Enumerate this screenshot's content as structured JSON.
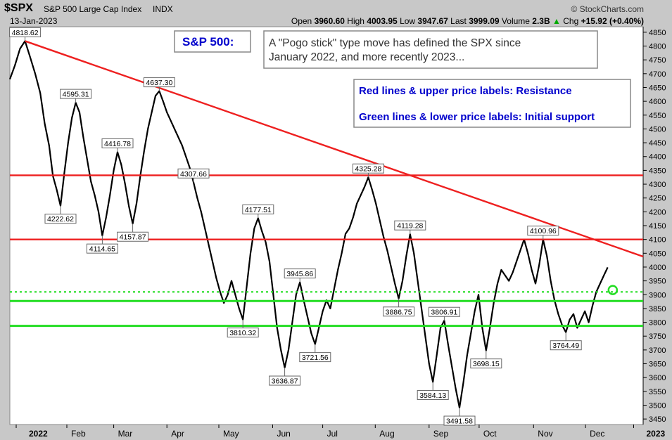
{
  "header": {
    "symbol": "$SPX",
    "name": "S&P 500 Large Cap Index",
    "exchange": "INDX",
    "date": "13-Jan-2023",
    "brand": "© StockCharts.com",
    "open_label": "Open",
    "open": "3960.60",
    "high_label": "High",
    "high": "4003.95",
    "low_label": "Low",
    "low": "3947.67",
    "last_label": "Last",
    "last": "3999.09",
    "volume_label": "Volume",
    "volume": "2.3B",
    "chg_label": "Chg",
    "chg": "+15.92 (+0.40%)",
    "chg_arrow": "▲"
  },
  "annotations": {
    "title_box": "S&P 500:",
    "note_line1": "A \"Pogo stick\" type move has defined the SPX since",
    "note_line2": "January 2022, and more recently 2023...",
    "legend_red": "Red lines & upper price labels: Resistance",
    "legend_green": "Green lines & lower price labels: Initial support"
  },
  "colors": {
    "background": "#c8c8c8",
    "plot": "#ffffff",
    "resistance": "#ee2020",
    "support": "#22dd22",
    "price": "#000000",
    "annotation_blue": "#0000cc"
  },
  "chart_data": {
    "type": "line",
    "ylim": [
      3430,
      4870
    ],
    "yticks": [
      3450,
      3500,
      3550,
      3600,
      3650,
      3700,
      3750,
      3800,
      3850,
      3900,
      3950,
      4000,
      4050,
      4100,
      4150,
      4200,
      4250,
      4300,
      4350,
      4400,
      4450,
      4500,
      4550,
      4600,
      4650,
      4700,
      4750,
      4800,
      4850
    ],
    "x_domain": [
      0,
      1
    ],
    "xticks": [
      {
        "x": 0.01,
        "label": "2022",
        "bold": true
      },
      {
        "x": 0.09,
        "label": "Feb"
      },
      {
        "x": 0.164,
        "label": "Mar"
      },
      {
        "x": 0.248,
        "label": "Apr"
      },
      {
        "x": 0.33,
        "label": "May"
      },
      {
        "x": 0.415,
        "label": "Jun"
      },
      {
        "x": 0.494,
        "label": "Jul"
      },
      {
        "x": 0.577,
        "label": "Aug"
      },
      {
        "x": 0.662,
        "label": "Sep"
      },
      {
        "x": 0.741,
        "label": "Oct"
      },
      {
        "x": 0.827,
        "label": "Nov"
      },
      {
        "x": 0.909,
        "label": "Dec"
      },
      {
        "x": 0.985,
        "label": "2023",
        "bold": true
      }
    ],
    "series": [
      {
        "points": [
          [
            0.0,
            4680
          ],
          [
            0.008,
            4730
          ],
          [
            0.016,
            4790
          ],
          [
            0.024,
            4818
          ],
          [
            0.032,
            4760
          ],
          [
            0.04,
            4700
          ],
          [
            0.048,
            4630
          ],
          [
            0.055,
            4520
          ],
          [
            0.062,
            4440
          ],
          [
            0.068,
            4330
          ],
          [
            0.074,
            4280
          ],
          [
            0.08,
            4222
          ],
          [
            0.086,
            4340
          ],
          [
            0.092,
            4450
          ],
          [
            0.098,
            4540
          ],
          [
            0.104,
            4595
          ],
          [
            0.11,
            4560
          ],
          [
            0.116,
            4470
          ],
          [
            0.122,
            4390
          ],
          [
            0.128,
            4310
          ],
          [
            0.134,
            4260
          ],
          [
            0.14,
            4200
          ],
          [
            0.146,
            4114
          ],
          [
            0.152,
            4180
          ],
          [
            0.158,
            4260
          ],
          [
            0.164,
            4350
          ],
          [
            0.17,
            4416
          ],
          [
            0.176,
            4370
          ],
          [
            0.182,
            4300
          ],
          [
            0.188,
            4220
          ],
          [
            0.194,
            4157
          ],
          [
            0.2,
            4230
          ],
          [
            0.206,
            4330
          ],
          [
            0.212,
            4420
          ],
          [
            0.218,
            4500
          ],
          [
            0.224,
            4560
          ],
          [
            0.23,
            4620
          ],
          [
            0.236,
            4637
          ],
          [
            0.242,
            4600
          ],
          [
            0.248,
            4560
          ],
          [
            0.254,
            4530
          ],
          [
            0.26,
            4500
          ],
          [
            0.266,
            4470
          ],
          [
            0.272,
            4440
          ],
          [
            0.278,
            4400
          ],
          [
            0.284,
            4360
          ],
          [
            0.29,
            4307
          ],
          [
            0.296,
            4250
          ],
          [
            0.302,
            4200
          ],
          [
            0.308,
            4140
          ],
          [
            0.314,
            4080
          ],
          [
            0.32,
            4020
          ],
          [
            0.326,
            3960
          ],
          [
            0.332,
            3910
          ],
          [
            0.338,
            3870
          ],
          [
            0.344,
            3900
          ],
          [
            0.35,
            3950
          ],
          [
            0.356,
            3900
          ],
          [
            0.362,
            3850
          ],
          [
            0.368,
            3810
          ],
          [
            0.374,
            3930
          ],
          [
            0.38,
            4050
          ],
          [
            0.386,
            4140
          ],
          [
            0.392,
            4177
          ],
          [
            0.398,
            4130
          ],
          [
            0.404,
            4090
          ],
          [
            0.41,
            4020
          ],
          [
            0.416,
            3900
          ],
          [
            0.422,
            3780
          ],
          [
            0.428,
            3700
          ],
          [
            0.434,
            3636
          ],
          [
            0.44,
            3700
          ],
          [
            0.446,
            3800
          ],
          [
            0.452,
            3900
          ],
          [
            0.458,
            3945
          ],
          [
            0.464,
            3880
          ],
          [
            0.47,
            3820
          ],
          [
            0.476,
            3760
          ],
          [
            0.482,
            3721
          ],
          [
            0.488,
            3780
          ],
          [
            0.494,
            3840
          ],
          [
            0.5,
            3880
          ],
          [
            0.506,
            3850
          ],
          [
            0.512,
            3920
          ],
          [
            0.518,
            3990
          ],
          [
            0.524,
            4050
          ],
          [
            0.53,
            4120
          ],
          [
            0.536,
            4140
          ],
          [
            0.542,
            4180
          ],
          [
            0.548,
            4230
          ],
          [
            0.554,
            4260
          ],
          [
            0.56,
            4290
          ],
          [
            0.566,
            4325
          ],
          [
            0.572,
            4280
          ],
          [
            0.578,
            4230
          ],
          [
            0.584,
            4170
          ],
          [
            0.59,
            4110
          ],
          [
            0.596,
            4060
          ],
          [
            0.602,
            4000
          ],
          [
            0.608,
            3940
          ],
          [
            0.614,
            3886
          ],
          [
            0.62,
            3950
          ],
          [
            0.626,
            4040
          ],
          [
            0.632,
            4119
          ],
          [
            0.638,
            4050
          ],
          [
            0.644,
            3950
          ],
          [
            0.65,
            3850
          ],
          [
            0.656,
            3750
          ],
          [
            0.662,
            3650
          ],
          [
            0.668,
            3584
          ],
          [
            0.674,
            3680
          ],
          [
            0.68,
            3780
          ],
          [
            0.686,
            3806
          ],
          [
            0.692,
            3720
          ],
          [
            0.698,
            3640
          ],
          [
            0.704,
            3560
          ],
          [
            0.71,
            3491
          ],
          [
            0.716,
            3580
          ],
          [
            0.722,
            3680
          ],
          [
            0.728,
            3760
          ],
          [
            0.734,
            3840
          ],
          [
            0.74,
            3900
          ],
          [
            0.746,
            3780
          ],
          [
            0.752,
            3698
          ],
          [
            0.758,
            3780
          ],
          [
            0.764,
            3870
          ],
          [
            0.77,
            3940
          ],
          [
            0.776,
            3990
          ],
          [
            0.782,
            3970
          ],
          [
            0.788,
            3950
          ],
          [
            0.794,
            3980
          ],
          [
            0.8,
            4020
          ],
          [
            0.806,
            4060
          ],
          [
            0.812,
            4100
          ],
          [
            0.818,
            4050
          ],
          [
            0.824,
            3990
          ],
          [
            0.83,
            3940
          ],
          [
            0.836,
            4010
          ],
          [
            0.842,
            4100
          ],
          [
            0.848,
            4040
          ],
          [
            0.854,
            3950
          ],
          [
            0.86,
            3880
          ],
          [
            0.866,
            3830
          ],
          [
            0.872,
            3790
          ],
          [
            0.878,
            3764
          ],
          [
            0.884,
            3810
          ],
          [
            0.89,
            3830
          ],
          [
            0.896,
            3780
          ],
          [
            0.902,
            3810
          ],
          [
            0.908,
            3840
          ],
          [
            0.914,
            3800
          ],
          [
            0.92,
            3860
          ],
          [
            0.926,
            3910
          ],
          [
            0.932,
            3940
          ],
          [
            0.938,
            3970
          ],
          [
            0.944,
            3999
          ]
        ],
        "color": "#000000"
      }
    ],
    "resistance_lines": [
      {
        "y1": 4818,
        "y2": 4038,
        "x1": 0.024,
        "x2": 1.0
      },
      {
        "y": 4332
      },
      {
        "y": 4100
      }
    ],
    "support_lines": [
      {
        "y": 3910,
        "dashed": true
      },
      {
        "y": 3877
      },
      {
        "y": 3787
      }
    ],
    "labels": [
      {
        "x": 0.024,
        "y": 4818,
        "text": "4818.62",
        "pos": "above"
      },
      {
        "x": 0.104,
        "y": 4595,
        "text": "4595.31",
        "pos": "above"
      },
      {
        "x": 0.236,
        "y": 4637,
        "text": "4637.30",
        "pos": "above"
      },
      {
        "x": 0.17,
        "y": 4416,
        "text": "4416.78",
        "pos": "above"
      },
      {
        "x": 0.29,
        "y": 4307,
        "text": "4307.66",
        "pos": "above"
      },
      {
        "x": 0.392,
        "y": 4177,
        "text": "4177.51",
        "pos": "above"
      },
      {
        "x": 0.458,
        "y": 3945,
        "text": "3945.86",
        "pos": "above"
      },
      {
        "x": 0.566,
        "y": 4325,
        "text": "4325.28",
        "pos": "above"
      },
      {
        "x": 0.632,
        "y": 4119,
        "text": "4119.28",
        "pos": "above"
      },
      {
        "x": 0.686,
        "y": 3806,
        "text": "3806.91",
        "pos": "above"
      },
      {
        "x": 0.842,
        "y": 4100,
        "text": "4100.96",
        "pos": "above"
      },
      {
        "x": 0.08,
        "y": 4222,
        "text": "4222.62",
        "pos": "below"
      },
      {
        "x": 0.146,
        "y": 4114,
        "text": "4114.65",
        "pos": "below"
      },
      {
        "x": 0.194,
        "y": 4157,
        "text": "4157.87",
        "pos": "below"
      },
      {
        "x": 0.368,
        "y": 3810,
        "text": "3810.32",
        "pos": "below"
      },
      {
        "x": 0.434,
        "y": 3636,
        "text": "3636.87",
        "pos": "below"
      },
      {
        "x": 0.482,
        "y": 3721,
        "text": "3721.56",
        "pos": "below"
      },
      {
        "x": 0.614,
        "y": 3886,
        "text": "3886.75",
        "pos": "below"
      },
      {
        "x": 0.668,
        "y": 3584,
        "text": "3584.13",
        "pos": "below"
      },
      {
        "x": 0.71,
        "y": 3491,
        "text": "3491.58",
        "pos": "below"
      },
      {
        "x": 0.752,
        "y": 3698,
        "text": "3698.15",
        "pos": "below"
      },
      {
        "x": 0.878,
        "y": 3764,
        "text": "3764.49",
        "pos": "below"
      }
    ],
    "marker": {
      "x": 0.952,
      "y": 3917
    }
  }
}
